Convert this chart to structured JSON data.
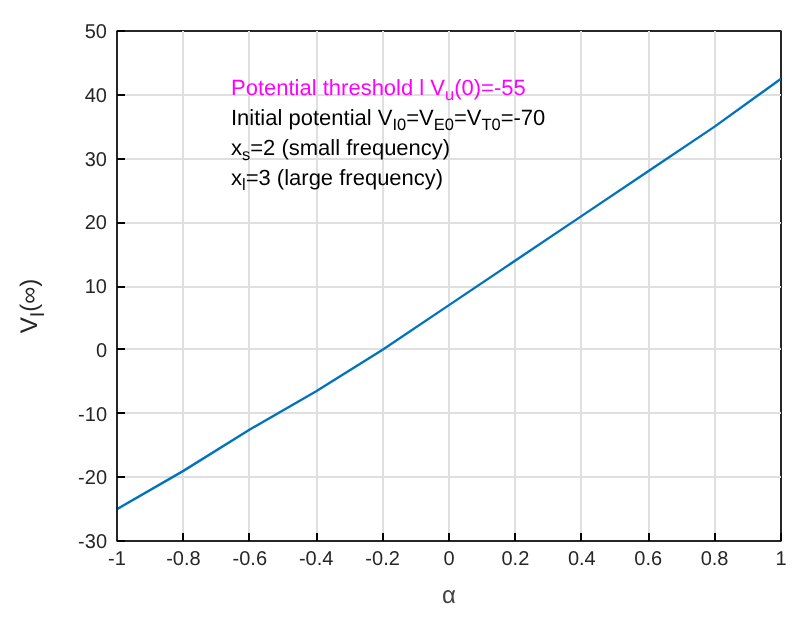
{
  "chart_data": {
    "type": "line",
    "xlabel": "α",
    "ylabel": "V$_{I}$(∞)",
    "x": [
      -1,
      -0.8,
      -0.6,
      -0.4,
      -0.2,
      0,
      0.2,
      0.4,
      0.6,
      0.8,
      1
    ],
    "series": [
      {
        "color": "#0072bd",
        "values": [
          -25,
          -19,
          -12.5,
          -6.5,
          0,
          7,
          14,
          21,
          28,
          35,
          42.5
        ]
      }
    ],
    "xlim": [
      -1,
      1
    ],
    "ylim": [
      -30,
      50
    ],
    "xticks": [
      -1,
      -0.8,
      -0.6,
      -0.4,
      -0.2,
      0,
      0.2,
      0.4,
      0.6,
      0.8,
      1
    ],
    "yticks": [
      -30,
      -20,
      -10,
      0,
      10,
      20,
      30,
      40,
      50
    ],
    "grid": true,
    "annotations": [
      "Potential threshold l V$_{u}$(0)=-55",
      "Initial potential V$_{I0}$=V$_{E0}$=V$_{T0}$=-70",
      "x$_{s}$=2 (small frequency)",
      "x$_{l}$=3 (large frequency)"
    ]
  }
}
